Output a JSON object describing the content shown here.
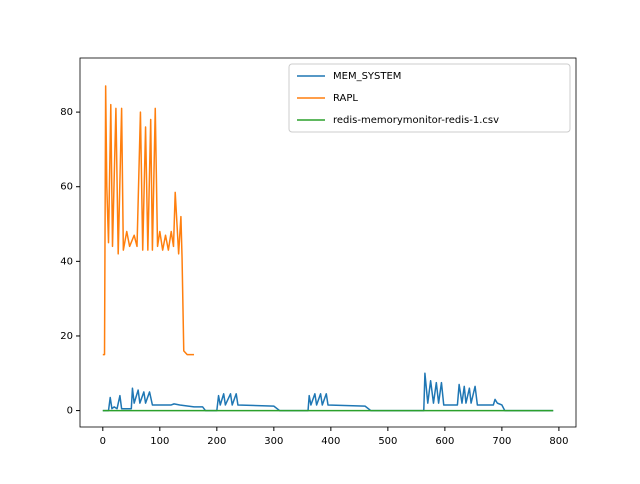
{
  "chart_data": {
    "type": "line",
    "xlim": [
      -40,
      830
    ],
    "ylim": [
      -4.4,
      94.5
    ],
    "xticks": [
      0,
      100,
      200,
      300,
      400,
      500,
      600,
      700,
      800
    ],
    "yticks": [
      0,
      20,
      40,
      60,
      80
    ],
    "legend": "upper right",
    "series": [
      {
        "name": "MEM_SYSTEM",
        "color": "#1f77b4",
        "x": [
          0,
          10,
          13,
          16,
          20,
          25,
          30,
          33,
          50,
          52,
          55,
          62,
          65,
          72,
          75,
          82,
          87,
          120,
          125,
          135,
          160,
          175,
          180,
          200,
          203,
          206,
          212,
          215,
          224,
          227,
          234,
          237,
          300,
          310,
          360,
          362,
          365,
          372,
          375,
          382,
          385,
          392,
          395,
          460,
          470,
          563,
          565,
          570,
          575,
          580,
          585,
          589,
          594,
          598,
          622,
          625,
          630,
          634,
          637,
          643,
          646,
          653,
          657,
          685,
          688,
          692,
          700,
          705,
          790
        ],
        "values": [
          0,
          0,
          3.5,
          0.5,
          1,
          0.5,
          4,
          0.5,
          0.5,
          6,
          2,
          5.5,
          2,
          5,
          2,
          5,
          1.5,
          1.5,
          1.8,
          1.5,
          1,
          1,
          0,
          0,
          4,
          1.5,
          4.5,
          1.5,
          4.5,
          1.5,
          4.5,
          1.5,
          1.2,
          0,
          0,
          4,
          1.5,
          4.5,
          1.5,
          4.5,
          1.5,
          4.5,
          1.5,
          1.2,
          0,
          0,
          10,
          2,
          8,
          2,
          7.5,
          2,
          7.5,
          1.5,
          1.5,
          7,
          2,
          6.5,
          2,
          6,
          2,
          6.5,
          1.5,
          1.5,
          3,
          2,
          1.5,
          0,
          0
        ]
      },
      {
        "name": "RAPL",
        "color": "#ff7f0e",
        "x": [
          0,
          3,
          5,
          7,
          10,
          14,
          17,
          23,
          27,
          33,
          36,
          42,
          47,
          55,
          60,
          66,
          70,
          75,
          79,
          84,
          87,
          92,
          96,
          100,
          105,
          110,
          115,
          120,
          124,
          127,
          133,
          137,
          139,
          142,
          148,
          160
        ],
        "values": [
          15,
          15,
          87,
          60,
          45,
          82,
          44,
          81,
          42,
          81,
          43,
          48,
          44,
          47,
          44,
          80,
          43,
          76,
          43,
          78,
          43,
          81,
          44,
          48,
          43,
          47,
          43,
          48,
          44,
          58.5,
          42,
          52,
          41,
          16,
          15,
          15
        ]
      },
      {
        "name": "redis-memorymonitor-redis-1.csv",
        "color": "#2ca02c",
        "x": [
          0,
          790
        ],
        "values": [
          0,
          0
        ]
      }
    ]
  }
}
